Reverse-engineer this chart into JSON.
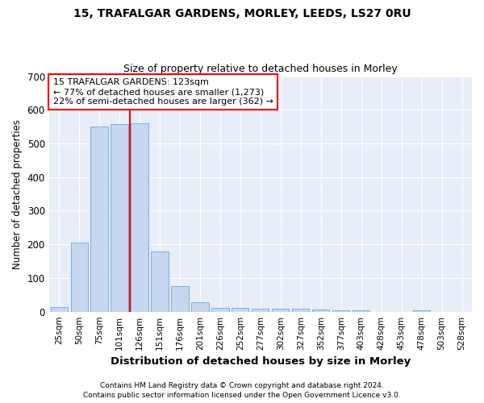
{
  "title1": "15, TRAFALGAR GARDENS, MORLEY, LEEDS, LS27 0RU",
  "title2": "Size of property relative to detached houses in Morley",
  "xlabel": "Distribution of detached houses by size in Morley",
  "ylabel": "Number of detached properties",
  "categories": [
    "25sqm",
    "50sqm",
    "75sqm",
    "101sqm",
    "126sqm",
    "151sqm",
    "176sqm",
    "201sqm",
    "226sqm",
    "252sqm",
    "277sqm",
    "302sqm",
    "327sqm",
    "352sqm",
    "377sqm",
    "403sqm",
    "428sqm",
    "453sqm",
    "478sqm",
    "503sqm",
    "528sqm"
  ],
  "values": [
    13,
    205,
    550,
    558,
    560,
    178,
    76,
    28,
    12,
    12,
    8,
    10,
    10,
    6,
    5,
    5,
    0,
    0,
    5,
    0,
    0
  ],
  "bar_color": "#c5d8f0",
  "bar_edge_color": "#7aaed6",
  "annotation_line1": "15 TRAFALGAR GARDENS: 123sqm",
  "annotation_line2": "← 77% of detached houses are smaller (1,273)",
  "annotation_line3": "22% of semi-detached houses are larger (362) →",
  "vline_index": 3.5,
  "ylim": [
    0,
    700
  ],
  "yticks": [
    0,
    100,
    200,
    300,
    400,
    500,
    600,
    700
  ],
  "background_color": "#ffffff",
  "plot_bg_color": "#e8eef8",
  "grid_color": "#ffffff",
  "footer1": "Contains HM Land Registry data © Crown copyright and database right 2024.",
  "footer2": "Contains public sector information licensed under the Open Government Licence v3.0."
}
